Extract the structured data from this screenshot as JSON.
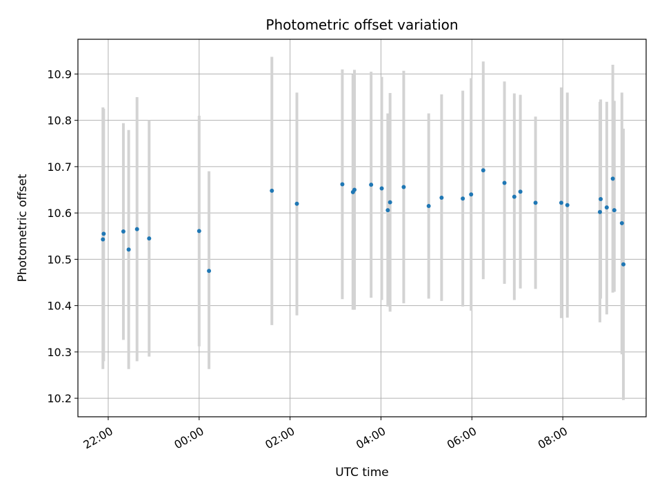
{
  "chart_data": {
    "type": "scatter",
    "title": "Photometric offset variation",
    "xlabel": "UTC time",
    "ylabel": "Photometric offset",
    "grid": true,
    "x_axis_kind": "time",
    "xlim": [
      "21:20",
      "09:50"
    ],
    "ylim": [
      10.16,
      10.975
    ],
    "xticks": [
      "22:00",
      "00:00",
      "02:00",
      "04:00",
      "06:00",
      "08:00"
    ],
    "yticks": [
      10.2,
      10.3,
      10.4,
      10.5,
      10.6,
      10.7,
      10.8,
      10.9
    ],
    "colors": {
      "points": "#1f77b4",
      "errorbars": "#d3d3d3",
      "grid": "#b0b0b0"
    },
    "points": [
      {
        "x": "21:53",
        "y": 10.543,
        "low": 10.263,
        "high": 10.828
      },
      {
        "x": "21:54",
        "y": 10.555,
        "low": 10.28,
        "high": 10.825
      },
      {
        "x": "22:20",
        "y": 10.56,
        "low": 10.326,
        "high": 10.794
      },
      {
        "x": "22:27",
        "y": 10.521,
        "low": 10.263,
        "high": 10.779
      },
      {
        "x": "22:38",
        "y": 10.565,
        "low": 10.28,
        "high": 10.85
      },
      {
        "x": "22:54",
        "y": 10.545,
        "low": 10.29,
        "high": 10.8
      },
      {
        "x": "00:00",
        "y": 10.561,
        "low": 10.312,
        "high": 10.81
      },
      {
        "x": "00:13",
        "y": 10.475,
        "low": 10.263,
        "high": 10.69
      },
      {
        "x": "01:36",
        "y": 10.648,
        "low": 10.358,
        "high": 10.937
      },
      {
        "x": "02:09",
        "y": 10.62,
        "low": 10.379,
        "high": 10.86
      },
      {
        "x": "03:09",
        "y": 10.662,
        "low": 10.414,
        "high": 10.91
      },
      {
        "x": "03:23",
        "y": 10.645,
        "low": 10.391,
        "high": 10.899
      },
      {
        "x": "03:25",
        "y": 10.65,
        "low": 10.391,
        "high": 10.909
      },
      {
        "x": "03:47",
        "y": 10.661,
        "low": 10.417,
        "high": 10.905
      },
      {
        "x": "04:01",
        "y": 10.653,
        "low": 10.412,
        "high": 10.894
      },
      {
        "x": "04:09",
        "y": 10.606,
        "low": 10.398,
        "high": 10.815
      },
      {
        "x": "04:12",
        "y": 10.623,
        "low": 10.387,
        "high": 10.859
      },
      {
        "x": "04:30",
        "y": 10.656,
        "low": 10.405,
        "high": 10.907
      },
      {
        "x": "05:03",
        "y": 10.615,
        "low": 10.415,
        "high": 10.815
      },
      {
        "x": "05:20",
        "y": 10.633,
        "low": 10.41,
        "high": 10.856
      },
      {
        "x": "05:48",
        "y": 10.631,
        "low": 10.398,
        "high": 10.864
      },
      {
        "x": "05:59",
        "y": 10.64,
        "low": 10.389,
        "high": 10.891
      },
      {
        "x": "06:15",
        "y": 10.692,
        "low": 10.457,
        "high": 10.927
      },
      {
        "x": "06:43",
        "y": 10.665,
        "low": 10.447,
        "high": 10.884
      },
      {
        "x": "06:56",
        "y": 10.635,
        "low": 10.412,
        "high": 10.858
      },
      {
        "x": "07:04",
        "y": 10.646,
        "low": 10.437,
        "high": 10.855
      },
      {
        "x": "07:24",
        "y": 10.622,
        "low": 10.436,
        "high": 10.808
      },
      {
        "x": "07:58",
        "y": 10.622,
        "low": 10.373,
        "high": 10.871
      },
      {
        "x": "08:06",
        "y": 10.617,
        "low": 10.374,
        "high": 10.86
      },
      {
        "x": "08:49",
        "y": 10.602,
        "low": 10.364,
        "high": 10.84
      },
      {
        "x": "08:50",
        "y": 10.63,
        "low": 10.415,
        "high": 10.845
      },
      {
        "x": "08:58",
        "y": 10.612,
        "low": 10.381,
        "high": 10.84
      },
      {
        "x": "09:06",
        "y": 10.674,
        "low": 10.428,
        "high": 10.92
      },
      {
        "x": "09:08",
        "y": 10.606,
        "low": 10.43,
        "high": 10.842
      },
      {
        "x": "09:18",
        "y": 10.578,
        "low": 10.295,
        "high": 10.86
      },
      {
        "x": "09:20",
        "y": 10.489,
        "low": 10.196,
        "high": 10.782
      }
    ]
  }
}
